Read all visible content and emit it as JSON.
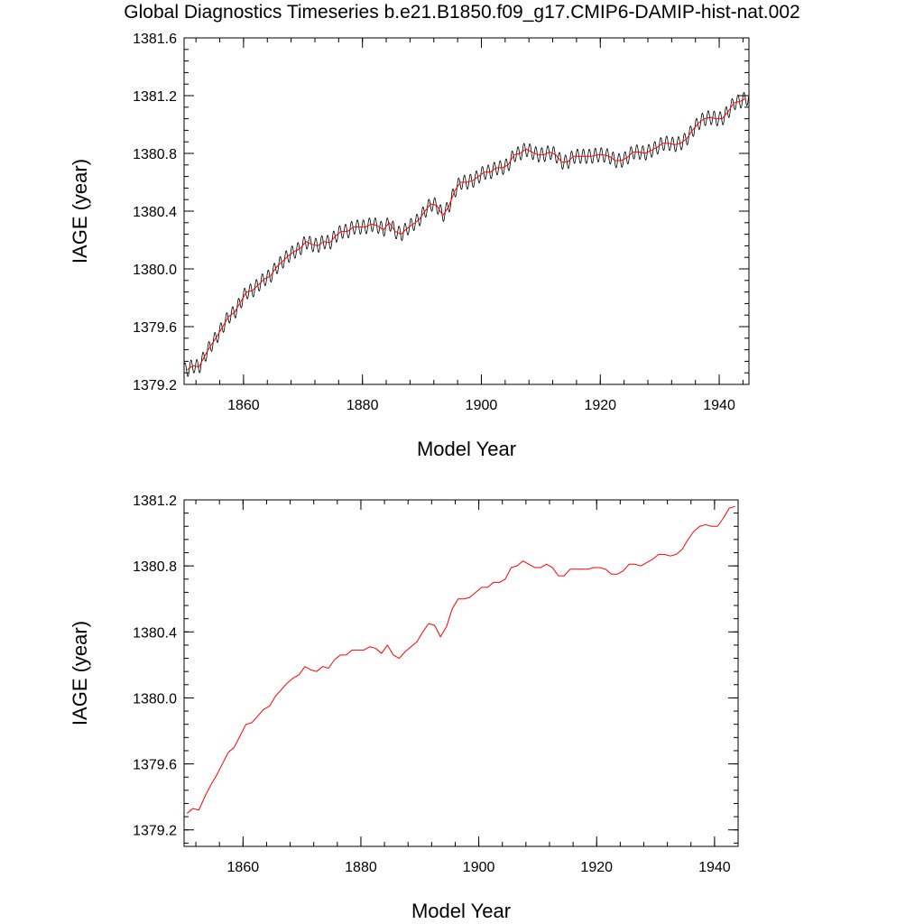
{
  "title": "Global Diagnostics Timeseries b.e21.B1850.f09_g17.CMIP6-DAMIP-hist-nat.002",
  "chart_data": [
    {
      "type": "line",
      "xlabel": "Model Year",
      "ylabel": "IAGE (year)",
      "xlim": [
        1850,
        1945
      ],
      "ylim": [
        1379.2,
        1381.6
      ],
      "xticks": [
        "1860",
        "1880",
        "1900",
        "1920",
        "1940"
      ],
      "yticks": [
        "1379.2",
        "1379.6",
        "1380.0",
        "1380.4",
        "1380.8",
        "1381.2",
        "1381.6"
      ],
      "series": [
        {
          "color": "#000000",
          "seasonal_amplitude": 0.05,
          "x": [
            1850.5,
            1851.5,
            1852.5,
            1853.5,
            1854.5,
            1855.5,
            1856.5,
            1857.5,
            1858.5,
            1859.5,
            1860.5,
            1861.5,
            1862.5,
            1863.5,
            1864.5,
            1865.5,
            1866.5,
            1867.5,
            1868.5,
            1869.5,
            1870.5,
            1871.5,
            1872.5,
            1873.5,
            1874.5,
            1875.5,
            1876.5,
            1877.5,
            1878.5,
            1879.5,
            1880.5,
            1881.5,
            1882.5,
            1883.5,
            1884.5,
            1885.5,
            1886.5,
            1887.5,
            1888.5,
            1889.5,
            1890.5,
            1891.5,
            1892.5,
            1893.5,
            1894.5,
            1895.5,
            1896.5,
            1897.5,
            1898.5,
            1899.5,
            1900.5,
            1901.5,
            1902.5,
            1903.5,
            1904.5,
            1905.5,
            1906.5,
            1907.5,
            1908.5,
            1909.5,
            1910.5,
            1911.5,
            1912.5,
            1913.5,
            1914.5,
            1915.5,
            1916.5,
            1917.5,
            1918.5,
            1919.5,
            1920.5,
            1921.5,
            1922.5,
            1923.5,
            1924.5,
            1925.5,
            1926.5,
            1927.5,
            1928.5,
            1929.5,
            1930.5,
            1931.5,
            1932.5,
            1933.5,
            1934.5,
            1935.5,
            1936.5,
            1937.5,
            1938.5,
            1939.5,
            1940.5,
            1941.5,
            1942.5,
            1943.5,
            1944.5
          ],
          "values": [
            1379.3,
            1379.33,
            1379.32,
            1379.4,
            1379.47,
            1379.53,
            1379.6,
            1379.67,
            1379.7,
            1379.77,
            1379.84,
            1379.85,
            1379.89,
            1379.93,
            1379.95,
            1380.01,
            1380.05,
            1380.09,
            1380.12,
            1380.14,
            1380.19,
            1380.17,
            1380.16,
            1380.19,
            1380.18,
            1380.23,
            1380.26,
            1380.26,
            1380.29,
            1380.29,
            1380.29,
            1380.31,
            1380.3,
            1380.27,
            1380.32,
            1380.26,
            1380.24,
            1380.28,
            1380.31,
            1380.34,
            1380.4,
            1380.45,
            1380.44,
            1380.37,
            1380.43,
            1380.54,
            1380.6,
            1380.6,
            1380.61,
            1380.64,
            1380.67,
            1380.67,
            1380.7,
            1380.7,
            1380.72,
            1380.79,
            1380.8,
            1380.83,
            1380.81,
            1380.79,
            1380.79,
            1380.81,
            1380.79,
            1380.74,
            1380.74,
            1380.78,
            1380.78,
            1380.78,
            1380.78,
            1380.79,
            1380.79,
            1380.78,
            1380.75,
            1380.75,
            1380.77,
            1380.81,
            1380.81,
            1380.8,
            1380.82,
            1380.84,
            1380.87,
            1380.87,
            1380.86,
            1380.87,
            1380.9,
            1380.96,
            1381.01,
            1381.04,
            1381.05,
            1381.04,
            1381.04,
            1381.09,
            1381.15,
            1381.16,
            1381.18
          ]
        },
        {
          "color": "#ff0000",
          "x": [
            1850.5,
            1851.5,
            1852.5,
            1853.5,
            1854.5,
            1855.5,
            1856.5,
            1857.5,
            1858.5,
            1859.5,
            1860.5,
            1861.5,
            1862.5,
            1863.5,
            1864.5,
            1865.5,
            1866.5,
            1867.5,
            1868.5,
            1869.5,
            1870.5,
            1871.5,
            1872.5,
            1873.5,
            1874.5,
            1875.5,
            1876.5,
            1877.5,
            1878.5,
            1879.5,
            1880.5,
            1881.5,
            1882.5,
            1883.5,
            1884.5,
            1885.5,
            1886.5,
            1887.5,
            1888.5,
            1889.5,
            1890.5,
            1891.5,
            1892.5,
            1893.5,
            1894.5,
            1895.5,
            1896.5,
            1897.5,
            1898.5,
            1899.5,
            1900.5,
            1901.5,
            1902.5,
            1903.5,
            1904.5,
            1905.5,
            1906.5,
            1907.5,
            1908.5,
            1909.5,
            1910.5,
            1911.5,
            1912.5,
            1913.5,
            1914.5,
            1915.5,
            1916.5,
            1917.5,
            1918.5,
            1919.5,
            1920.5,
            1921.5,
            1922.5,
            1923.5,
            1924.5,
            1925.5,
            1926.5,
            1927.5,
            1928.5,
            1929.5,
            1930.5,
            1931.5,
            1932.5,
            1933.5,
            1934.5,
            1935.5,
            1936.5,
            1937.5,
            1938.5,
            1939.5,
            1940.5,
            1941.5,
            1942.5,
            1943.5,
            1944.5
          ],
          "values": [
            1379.3,
            1379.33,
            1379.32,
            1379.4,
            1379.47,
            1379.53,
            1379.6,
            1379.67,
            1379.7,
            1379.77,
            1379.84,
            1379.85,
            1379.89,
            1379.93,
            1379.95,
            1380.01,
            1380.05,
            1380.09,
            1380.12,
            1380.14,
            1380.19,
            1380.17,
            1380.16,
            1380.19,
            1380.18,
            1380.23,
            1380.26,
            1380.26,
            1380.29,
            1380.29,
            1380.29,
            1380.31,
            1380.3,
            1380.27,
            1380.32,
            1380.26,
            1380.24,
            1380.28,
            1380.31,
            1380.34,
            1380.4,
            1380.45,
            1380.44,
            1380.37,
            1380.43,
            1380.54,
            1380.6,
            1380.6,
            1380.61,
            1380.64,
            1380.67,
            1380.67,
            1380.7,
            1380.7,
            1380.72,
            1380.79,
            1380.8,
            1380.83,
            1380.81,
            1380.79,
            1380.79,
            1380.81,
            1380.79,
            1380.74,
            1380.74,
            1380.78,
            1380.78,
            1380.78,
            1380.78,
            1380.79,
            1380.79,
            1380.78,
            1380.75,
            1380.75,
            1380.77,
            1380.81,
            1380.81,
            1380.8,
            1380.82,
            1380.84,
            1380.87,
            1380.87,
            1380.86,
            1380.87,
            1380.9,
            1380.96,
            1381.01,
            1381.04,
            1381.05,
            1381.04,
            1381.04,
            1381.09,
            1381.15,
            1381.16,
            1381.18
          ]
        }
      ]
    },
    {
      "type": "line",
      "xlabel": "Model Year",
      "ylabel": "IAGE (year)",
      "xlim": [
        1850,
        1944
      ],
      "ylim": [
        1379.1,
        1381.2
      ],
      "xticks": [
        "1860",
        "1880",
        "1900",
        "1920",
        "1940"
      ],
      "yticks": [
        "1379.2",
        "1379.6",
        "1380.0",
        "1380.4",
        "1380.8",
        "1381.2"
      ],
      "series": [
        {
          "color": "#ff0000",
          "x": [
            1850.5,
            1851.5,
            1852.5,
            1853.5,
            1854.5,
            1855.5,
            1856.5,
            1857.5,
            1858.5,
            1859.5,
            1860.5,
            1861.5,
            1862.5,
            1863.5,
            1864.5,
            1865.5,
            1866.5,
            1867.5,
            1868.5,
            1869.5,
            1870.5,
            1871.5,
            1872.5,
            1873.5,
            1874.5,
            1875.5,
            1876.5,
            1877.5,
            1878.5,
            1879.5,
            1880.5,
            1881.5,
            1882.5,
            1883.5,
            1884.5,
            1885.5,
            1886.5,
            1887.5,
            1888.5,
            1889.5,
            1890.5,
            1891.5,
            1892.5,
            1893.5,
            1894.5,
            1895.5,
            1896.5,
            1897.5,
            1898.5,
            1899.5,
            1900.5,
            1901.5,
            1902.5,
            1903.5,
            1904.5,
            1905.5,
            1906.5,
            1907.5,
            1908.5,
            1909.5,
            1910.5,
            1911.5,
            1912.5,
            1913.5,
            1914.5,
            1915.5,
            1916.5,
            1917.5,
            1918.5,
            1919.5,
            1920.5,
            1921.5,
            1922.5,
            1923.5,
            1924.5,
            1925.5,
            1926.5,
            1927.5,
            1928.5,
            1929.5,
            1930.5,
            1931.5,
            1932.5,
            1933.5,
            1934.5,
            1935.5,
            1936.5,
            1937.5,
            1938.5,
            1939.5,
            1940.5,
            1941.5,
            1942.5,
            1943.5
          ],
          "values": [
            1379.3,
            1379.33,
            1379.32,
            1379.4,
            1379.47,
            1379.53,
            1379.6,
            1379.67,
            1379.7,
            1379.77,
            1379.84,
            1379.85,
            1379.89,
            1379.93,
            1379.95,
            1380.01,
            1380.05,
            1380.09,
            1380.12,
            1380.14,
            1380.19,
            1380.17,
            1380.16,
            1380.19,
            1380.18,
            1380.23,
            1380.26,
            1380.26,
            1380.29,
            1380.29,
            1380.29,
            1380.31,
            1380.3,
            1380.27,
            1380.32,
            1380.26,
            1380.24,
            1380.28,
            1380.31,
            1380.34,
            1380.4,
            1380.45,
            1380.44,
            1380.37,
            1380.43,
            1380.54,
            1380.6,
            1380.6,
            1380.61,
            1380.64,
            1380.67,
            1380.67,
            1380.7,
            1380.7,
            1380.72,
            1380.79,
            1380.8,
            1380.83,
            1380.81,
            1380.79,
            1380.79,
            1380.81,
            1380.79,
            1380.74,
            1380.74,
            1380.78,
            1380.78,
            1380.78,
            1380.78,
            1380.79,
            1380.79,
            1380.78,
            1380.75,
            1380.75,
            1380.77,
            1380.81,
            1380.81,
            1380.8,
            1380.82,
            1380.84,
            1380.87,
            1380.87,
            1380.86,
            1380.87,
            1380.9,
            1380.96,
            1381.01,
            1381.04,
            1381.05,
            1381.04,
            1381.04,
            1381.09,
            1381.15,
            1381.16
          ]
        }
      ]
    }
  ]
}
